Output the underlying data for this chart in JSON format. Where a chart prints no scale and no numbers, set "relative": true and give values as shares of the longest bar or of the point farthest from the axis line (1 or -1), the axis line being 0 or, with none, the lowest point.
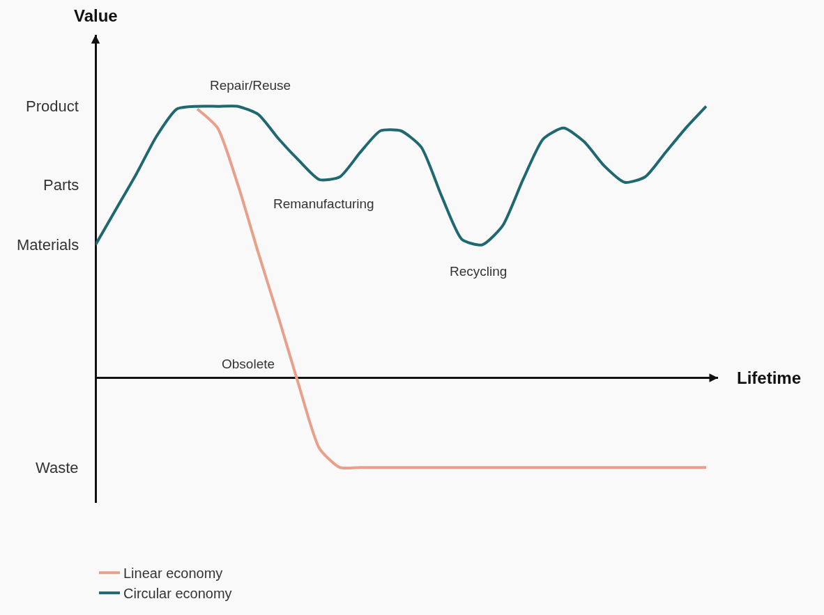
{
  "chart_data": {
    "type": "line",
    "relative": true,
    "xlabel": "Lifetime",
    "ylabel": "Value",
    "categories": [
      null,
      null,
      null,
      null,
      null,
      null,
      null,
      null,
      null,
      null,
      null,
      null,
      null,
      null,
      null,
      null,
      null,
      null,
      null,
      null,
      null,
      null,
      null,
      null,
      null,
      null,
      null,
      null,
      null,
      null,
      null
    ],
    "series": [
      {
        "name": "Linear economy",
        "color": "#e9a08a",
        "values": [
          null,
          null,
          null,
          null,
          null,
          0.99,
          0.92,
          0.71,
          0.46,
          0.22,
          -0.03,
          -0.26,
          -0.33,
          -0.33,
          -0.33,
          -0.33,
          -0.33,
          -0.33,
          -0.33,
          -0.33,
          -0.33,
          -0.33,
          -0.33,
          -0.33,
          -0.33,
          -0.33,
          -0.33,
          -0.33,
          -0.33,
          -0.33,
          -0.33
        ]
      },
      {
        "name": "Circular economy",
        "color": "#1f6870",
        "values": [
          0.49,
          0.62,
          0.75,
          0.89,
          0.99,
          1.0,
          1.0,
          1.0,
          0.97,
          0.88,
          0.8,
          0.73,
          0.74,
          0.83,
          0.91,
          0.91,
          0.85,
          0.67,
          0.51,
          0.49,
          0.56,
          0.73,
          0.88,
          0.92,
          0.87,
          0.78,
          0.72,
          0.74,
          0.83,
          0.92,
          1.0
        ]
      }
    ],
    "annotations": [
      "Repair/Reuse",
      "Remanufacturing",
      "Recycling",
      "Obsolete",
      "Product",
      "Parts",
      "Materials",
      "Waste"
    ],
    "legend": "bottom left",
    "grid": false,
    "marker": "none",
    "line_style": "solid"
  }
}
